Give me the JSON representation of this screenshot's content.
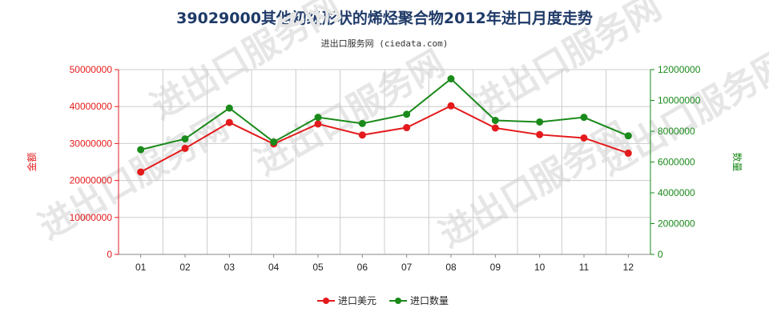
{
  "title": "39029000其他初级形状的烯烃聚合物2012年进口月度走势",
  "subtitle": "进出口服务网 (ciedata.com)",
  "watermark": "进出口服务网",
  "colors": {
    "amount": "#e41a1c",
    "quantity": "#1a8a1a",
    "title": "#1f3a68",
    "grid": "#cccccc"
  },
  "chart_data": {
    "type": "line",
    "categories": [
      "01",
      "02",
      "03",
      "04",
      "05",
      "06",
      "07",
      "08",
      "09",
      "10",
      "11",
      "12"
    ],
    "series": [
      {
        "name": "进口美元",
        "axis": "left",
        "color": "#e41a1c",
        "values": [
          22300000,
          28700000,
          35700000,
          29900000,
          35300000,
          32300000,
          34300000,
          40200000,
          34200000,
          32400000,
          31500000,
          27400000
        ]
      },
      {
        "name": "进口数量",
        "axis": "right",
        "color": "#1a8a1a",
        "values": [
          6800000,
          7500000,
          9500000,
          7300000,
          8900000,
          8500000,
          9100000,
          11400000,
          8700000,
          8600000,
          8900000,
          7700000
        ]
      }
    ],
    "y_left": {
      "label": "金额",
      "min": 0,
      "max": 50000000,
      "ticks": [
        "0",
        "10000000",
        "20000000",
        "30000000",
        "40000000",
        "50000000"
      ]
    },
    "y_right": {
      "label": "数量",
      "min": 0,
      "max": 12000000,
      "ticks": [
        "0",
        "2000000",
        "4000000",
        "6000000",
        "8000000",
        "10000000",
        "12000000"
      ]
    },
    "grid": true,
    "legend_position": "bottom-center"
  }
}
